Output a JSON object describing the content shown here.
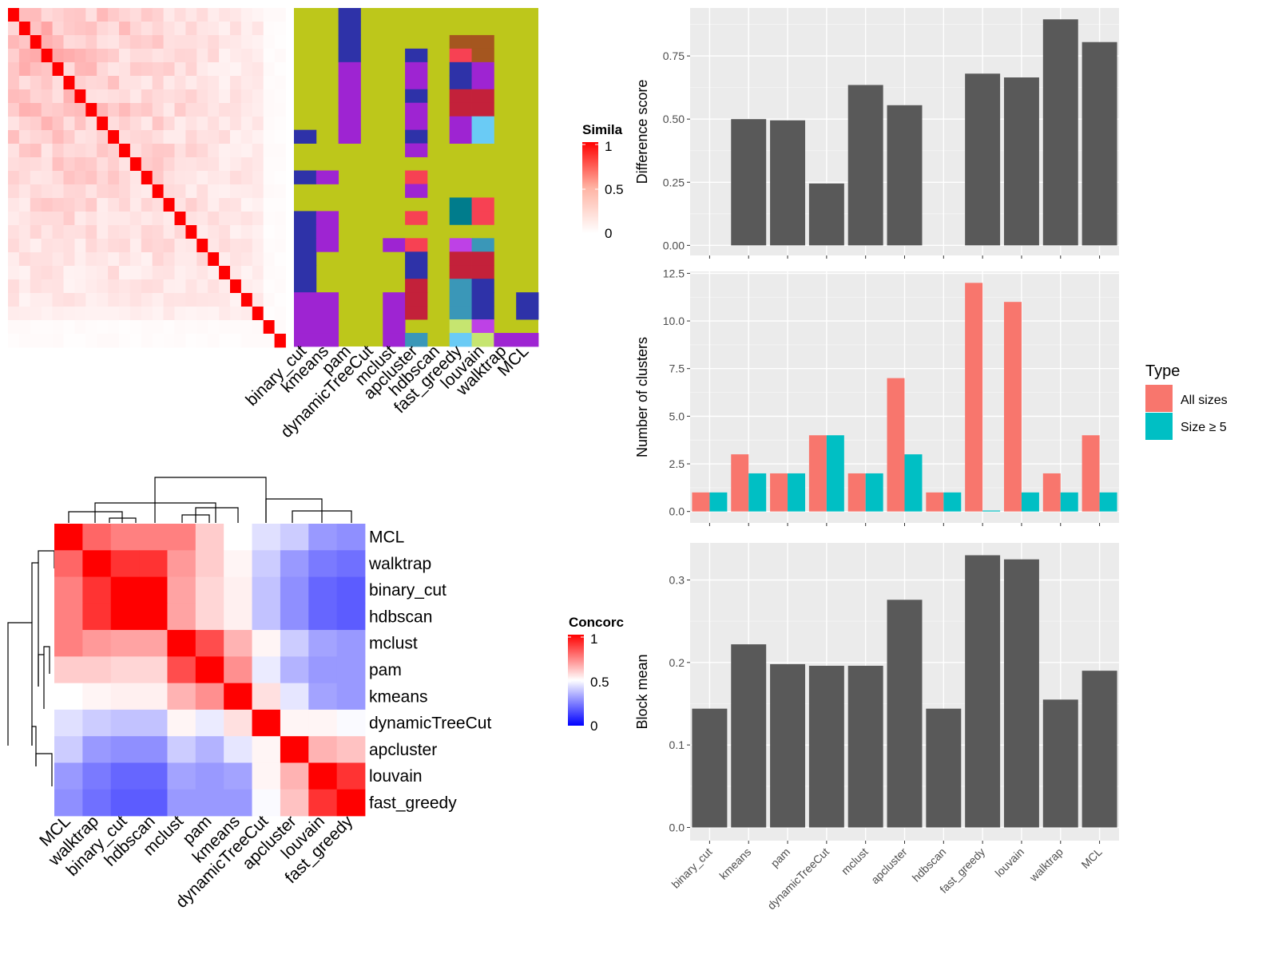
{
  "methods": [
    "binary_cut",
    "kmeans",
    "pam",
    "dynamicTreeCut",
    "mclust",
    "apcluster",
    "hdbscan",
    "fast_greedy",
    "louvain",
    "walktrap",
    "MCL"
  ],
  "similarity_legend": {
    "title": "Simila",
    "ticks": [
      "1",
      "0.5",
      "0"
    ]
  },
  "concordance_legend": {
    "title": "Concorc",
    "ticks": [
      "1",
      "0.5",
      "0"
    ]
  },
  "type_legend": {
    "title": "Type",
    "items": [
      "All sizes",
      "Size ≥ 5"
    ],
    "colors": [
      "#F8766D",
      "#00BFC4"
    ]
  },
  "colors": {
    "bar": "#595959",
    "panel_bg": "#EBEBEB",
    "grid": "#FFFFFF",
    "high": "#FF0000",
    "mid": "#FFFFFF",
    "low": "#0000FF",
    "partition_bg": "#BDC71B"
  },
  "concordance_order": [
    "MCL",
    "walktrap",
    "binary_cut",
    "hdbscan",
    "mclust",
    "pam",
    "kmeans",
    "dynamicTreeCut",
    "apcluster",
    "louvain",
    "fast_greedy"
  ],
  "partition_colors": [
    "#BDC71B",
    "#2E32A8",
    "#9E24D2",
    "#C3213A",
    "#F74153",
    "#007C8C",
    "#3A97B8",
    "#6ACBF5",
    "#C6E570",
    "#A5561F",
    "#BE41E6"
  ],
  "partition_matrix": [
    [
      0,
      0,
      1,
      0,
      0,
      0,
      0,
      0,
      0,
      0,
      0
    ],
    [
      0,
      0,
      1,
      0,
      0,
      0,
      0,
      0,
      0,
      0,
      0
    ],
    [
      0,
      0,
      1,
      0,
      0,
      0,
      0,
      9,
      9,
      0,
      0
    ],
    [
      0,
      0,
      1,
      0,
      0,
      1,
      0,
      4,
      9,
      0,
      0
    ],
    [
      0,
      0,
      2,
      0,
      0,
      2,
      0,
      1,
      2,
      0,
      0
    ],
    [
      0,
      0,
      2,
      0,
      0,
      2,
      0,
      1,
      2,
      0,
      0
    ],
    [
      0,
      0,
      2,
      0,
      0,
      1,
      0,
      3,
      3,
      0,
      0
    ],
    [
      0,
      0,
      2,
      0,
      0,
      2,
      0,
      3,
      3,
      0,
      0
    ],
    [
      0,
      0,
      2,
      0,
      0,
      2,
      0,
      2,
      7,
      0,
      0
    ],
    [
      1,
      0,
      2,
      0,
      0,
      1,
      0,
      2,
      7,
      0,
      0
    ],
    [
      0,
      0,
      0,
      0,
      0,
      2,
      0,
      0,
      0,
      0,
      0
    ],
    [
      0,
      0,
      0,
      0,
      0,
      0,
      0,
      0,
      0,
      0,
      0
    ],
    [
      1,
      2,
      0,
      0,
      0,
      4,
      0,
      0,
      0,
      0,
      0
    ],
    [
      0,
      0,
      0,
      0,
      0,
      2,
      0,
      0,
      0,
      0,
      0
    ],
    [
      0,
      0,
      0,
      0,
      0,
      0,
      0,
      5,
      4,
      0,
      0
    ],
    [
      1,
      2,
      0,
      0,
      0,
      4,
      0,
      5,
      4,
      0,
      0
    ],
    [
      1,
      2,
      0,
      0,
      0,
      0,
      0,
      0,
      0,
      0,
      0
    ],
    [
      1,
      2,
      0,
      0,
      2,
      4,
      0,
      10,
      6,
      0,
      0
    ],
    [
      1,
      0,
      0,
      0,
      0,
      1,
      0,
      3,
      3,
      0,
      0
    ],
    [
      1,
      0,
      0,
      0,
      0,
      1,
      0,
      3,
      3,
      0,
      0
    ],
    [
      1,
      0,
      0,
      0,
      0,
      3,
      0,
      6,
      1,
      0,
      0
    ],
    [
      2,
      2,
      0,
      0,
      2,
      3,
      0,
      6,
      1,
      0,
      1
    ],
    [
      2,
      2,
      0,
      0,
      2,
      3,
      0,
      6,
      1,
      0,
      1
    ],
    [
      2,
      2,
      0,
      0,
      2,
      0,
      0,
      8,
      10,
      0,
      0
    ],
    [
      2,
      2,
      0,
      0,
      2,
      6,
      0,
      7,
      8,
      2,
      2
    ]
  ],
  "chart_data": [
    {
      "type": "heatmap",
      "title": "",
      "legend_title": "Simila",
      "size": 25,
      "value_range": [
        0,
        1
      ],
      "note": "sample-by-sample similarity matrix, red diagonal"
    },
    {
      "type": "heatmap",
      "title": "",
      "legend_title": "Concorc",
      "rows": [
        "MCL",
        "walktrap",
        "binary_cut",
        "hdbscan",
        "mclust",
        "pam",
        "kmeans",
        "dynamicTreeCut",
        "apcluster",
        "louvain",
        "fast_greedy"
      ],
      "columns": [
        "MCL",
        "walktrap",
        "binary_cut",
        "hdbscan",
        "mclust",
        "pam",
        "kmeans",
        "dynamicTreeCut",
        "apcluster",
        "louvain",
        "fast_greedy"
      ],
      "value_range": [
        0,
        1
      ],
      "values": [
        [
          1.0,
          0.8,
          0.75,
          0.75,
          0.75,
          0.6,
          0.5,
          0.44,
          0.4,
          0.3,
          0.28
        ],
        [
          0.8,
          1.0,
          0.9,
          0.9,
          0.7,
          0.6,
          0.52,
          0.4,
          0.3,
          0.24,
          0.22
        ],
        [
          0.75,
          0.9,
          1.0,
          1.0,
          0.68,
          0.58,
          0.53,
          0.38,
          0.28,
          0.2,
          0.18
        ],
        [
          0.75,
          0.9,
          1.0,
          1.0,
          0.68,
          0.58,
          0.53,
          0.38,
          0.28,
          0.2,
          0.18
        ],
        [
          0.75,
          0.7,
          0.68,
          0.68,
          1.0,
          0.85,
          0.65,
          0.52,
          0.4,
          0.32,
          0.3
        ],
        [
          0.6,
          0.6,
          0.58,
          0.58,
          0.85,
          1.0,
          0.72,
          0.46,
          0.35,
          0.3,
          0.3
        ],
        [
          0.5,
          0.52,
          0.53,
          0.53,
          0.65,
          0.72,
          1.0,
          0.56,
          0.45,
          0.32,
          0.3
        ],
        [
          0.44,
          0.4,
          0.38,
          0.38,
          0.52,
          0.46,
          0.56,
          1.0,
          0.52,
          0.52,
          0.49
        ],
        [
          0.4,
          0.3,
          0.28,
          0.28,
          0.4,
          0.35,
          0.45,
          0.52,
          1.0,
          0.65,
          0.62
        ],
        [
          0.3,
          0.24,
          0.2,
          0.2,
          0.32,
          0.3,
          0.32,
          0.52,
          0.65,
          1.0,
          0.9
        ],
        [
          0.28,
          0.22,
          0.18,
          0.18,
          0.3,
          0.3,
          0.3,
          0.49,
          0.62,
          0.9,
          1.0
        ]
      ]
    },
    {
      "type": "bar",
      "title": "",
      "xlabel": "",
      "ylabel": "Difference score",
      "categories": [
        "binary_cut",
        "kmeans",
        "pam",
        "dynamicTreeCut",
        "mclust",
        "apcluster",
        "hdbscan",
        "fast_greedy",
        "louvain",
        "walktrap",
        "MCL"
      ],
      "values": [
        0,
        0.5,
        0.495,
        0.245,
        0.635,
        0.555,
        0,
        0.68,
        0.665,
        0.895,
        0.805
      ],
      "ylim": [
        -0.04,
        0.94
      ],
      "yticks": [
        0,
        0.25,
        0.5,
        0.75
      ],
      "ytick_labels": [
        "0.00",
        "0.25",
        "0.50",
        "0.75"
      ],
      "grid": true
    },
    {
      "type": "bar",
      "title": "",
      "xlabel": "",
      "ylabel": "Number of clusters",
      "categories": [
        "binary_cut",
        "kmeans",
        "pam",
        "dynamicTreeCut",
        "mclust",
        "apcluster",
        "hdbscan",
        "fast_greedy",
        "louvain",
        "walktrap",
        "MCL"
      ],
      "series": [
        {
          "name": "All sizes",
          "values": [
            1,
            3,
            2,
            4,
            2,
            7,
            1,
            12,
            11,
            2,
            4
          ]
        },
        {
          "name": "Size ≥ 5",
          "values": [
            1,
            2,
            2,
            4,
            2,
            3,
            1,
            0.05,
            1,
            1,
            1
          ]
        }
      ],
      "ylim": [
        -0.6,
        12.6
      ],
      "yticks": [
        0,
        2.5,
        5,
        7.5,
        10,
        12.5
      ],
      "ytick_labels": [
        "0.0",
        "2.5",
        "5.0",
        "7.5",
        "10.0",
        "12.5"
      ],
      "grid": true,
      "legend_title": "Type",
      "legend": "right"
    },
    {
      "type": "bar",
      "title": "",
      "xlabel": "",
      "ylabel": "Block mean",
      "categories": [
        "binary_cut",
        "kmeans",
        "pam",
        "dynamicTreeCut",
        "mclust",
        "apcluster",
        "hdbscan",
        "fast_greedy",
        "louvain",
        "walktrap",
        "MCL"
      ],
      "values": [
        0.144,
        0.222,
        0.198,
        0.196,
        0.196,
        0.276,
        0.144,
        0.33,
        0.325,
        0.155,
        0.19
      ],
      "ylim": [
        -0.016,
        0.345
      ],
      "yticks": [
        0,
        0.1,
        0.2,
        0.3
      ],
      "ytick_labels": [
        "0.0",
        "0.1",
        "0.2",
        "0.3"
      ],
      "grid": true
    }
  ]
}
